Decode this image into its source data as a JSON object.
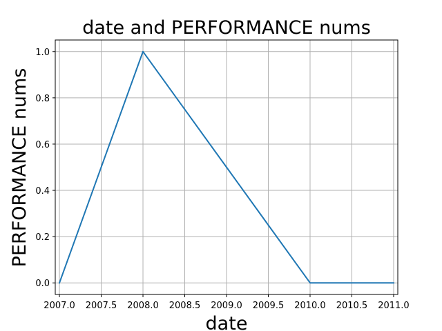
{
  "chart_data": {
    "type": "line",
    "title": "date and PERFORMANCE nums",
    "xlabel": "date",
    "ylabel": "PERFORMANCE nums",
    "xlim": [
      2006.95,
      2011.05
    ],
    "ylim": [
      -0.05,
      1.05
    ],
    "x_ticks": [
      2007.0,
      2007.5,
      2008.0,
      2008.5,
      2009.0,
      2009.5,
      2010.0,
      2010.5,
      2011.0
    ],
    "x_tick_labels": [
      "2007.0",
      "2007.5",
      "2008.0",
      "2008.5",
      "2009.0",
      "2009.5",
      "2010.0",
      "2010.5",
      "2011.0"
    ],
    "y_ticks": [
      0.0,
      0.2,
      0.4,
      0.6,
      0.8,
      1.0
    ],
    "y_tick_labels": [
      "0.0",
      "0.2",
      "0.4",
      "0.6",
      "0.8",
      "1.0"
    ],
    "grid": true,
    "series": [
      {
        "color": "#1f77b4",
        "x": [
          2007,
          2008,
          2009,
          2010,
          2011
        ],
        "y": [
          0.0,
          1.0,
          0.5,
          0.0,
          0.0
        ]
      }
    ]
  }
}
